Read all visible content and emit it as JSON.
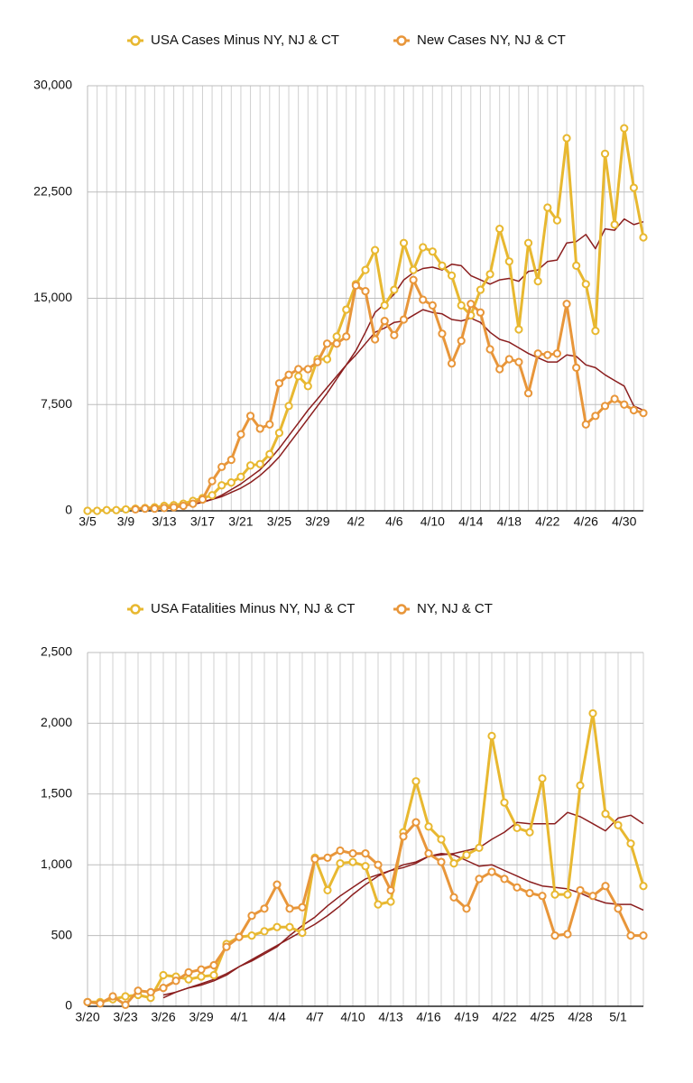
{
  "chart_data": [
    {
      "type": "line",
      "categories": [
        "3/5",
        null,
        null,
        null,
        "3/9",
        null,
        null,
        null,
        "3/13",
        null,
        null,
        null,
        "3/17",
        null,
        null,
        null,
        "3/21",
        null,
        null,
        null,
        "3/25",
        null,
        null,
        null,
        "3/29",
        null,
        null,
        null,
        "4/2",
        null,
        null,
        null,
        "4/6",
        null,
        null,
        null,
        "4/10",
        null,
        null,
        null,
        "4/14",
        null,
        null,
        null,
        "4/18",
        null,
        null,
        null,
        "4/22",
        null,
        null,
        null,
        "4/26",
        null,
        null,
        null,
        "4/30",
        null,
        null
      ],
      "ylim": [
        0,
        30000
      ],
      "yticks": [
        0,
        {
          "value": 7500,
          "label": "7,500"
        },
        {
          "value": 15000,
          "label": "15,000"
        },
        {
          "value": 22500,
          "label": "22,500"
        },
        {
          "value": 30000,
          "label": "30,000"
        }
      ],
      "grid": true,
      "legend": "top",
      "series": [
        {
          "color": "#8b1e1e",
          "values": [
            null,
            null,
            null,
            null,
            null,
            null,
            150,
            200,
            250,
            300,
            400,
            500,
            650,
            800,
            1000,
            1300,
            1600,
            2000,
            2500,
            3100,
            3800,
            4700,
            5600,
            6500,
            7400,
            8300,
            9300,
            10300,
            11300,
            12600,
            14000,
            14600,
            15300,
            16300,
            16800,
            17100,
            17200,
            17000,
            17400,
            17300,
            16600,
            16300,
            16000,
            16300,
            16400,
            16200,
            16900,
            17000,
            17600,
            17700,
            18900,
            19000,
            19500,
            18500,
            19900,
            19800,
            20600,
            20200,
            20400
          ]
        },
        {
          "color": "#8b1e1e",
          "values": [
            null,
            null,
            null,
            null,
            null,
            null,
            100,
            150,
            200,
            250,
            350,
            450,
            600,
            800,
            1100,
            1500,
            1900,
            2400,
            2900,
            3600,
            4400,
            5300,
            6200,
            7100,
            7900,
            8700,
            9500,
            10300,
            11000,
            11800,
            12600,
            12900,
            13300,
            13400,
            13800,
            14200,
            14000,
            13900,
            13500,
            13400,
            13600,
            13300,
            12600,
            12100,
            11900,
            11500,
            11100,
            10800,
            10500,
            10500,
            11000,
            10900,
            10300,
            10100,
            9600,
            9200,
            8800,
            7400,
            7100
          ]
        },
        {
          "name": "USA Cases Minus NY, NJ & CT",
          "color": "#e8b830",
          "marker": "circle",
          "values": [
            0,
            0,
            50,
            50,
            100,
            150,
            200,
            250,
            350,
            400,
            500,
            700,
            900,
            1100,
            1800,
            2000,
            2400,
            3200,
            3300,
            4000,
            5500,
            7400,
            9500,
            8800,
            10700,
            10700,
            12300,
            14200,
            16000,
            17000,
            18400,
            14500,
            15600,
            18900,
            17000,
            18600,
            18300,
            17300,
            16600,
            14500,
            13800,
            15600,
            16700,
            19900,
            17600,
            12800,
            18900,
            16200,
            21400,
            20500,
            26300,
            17300,
            16000,
            12700,
            25200,
            20200,
            27000,
            22800,
            19300
          ]
        },
        {
          "name": "New Cases NY, NJ & CT",
          "color": "#e8963a",
          "marker": "circle",
          "values": [
            null,
            null,
            null,
            null,
            null,
            100,
            150,
            150,
            200,
            250,
            350,
            500,
            800,
            2100,
            3100,
            3600,
            5400,
            6700,
            5800,
            6100,
            9000,
            9600,
            10000,
            10000,
            10500,
            11800,
            11800,
            12300,
            15900,
            15500,
            12100,
            13400,
            12400,
            13500,
            16300,
            14900,
            14500,
            12500,
            10400,
            12000,
            14600,
            14000,
            11400,
            10000,
            10700,
            10500,
            8300,
            11100,
            11000,
            11100,
            14600,
            10100,
            6100,
            6700,
            7400,
            7900,
            7500,
            7100,
            6900
          ]
        }
      ]
    },
    {
      "type": "line",
      "categories": [
        "3/20",
        null,
        null,
        "3/23",
        null,
        null,
        "3/26",
        null,
        null,
        "3/29",
        null,
        null,
        "4/1",
        null,
        null,
        "4/4",
        null,
        null,
        "4/7",
        null,
        null,
        "4/10",
        null,
        null,
        "4/13",
        null,
        null,
        "4/16",
        null,
        null,
        "4/19",
        null,
        null,
        "4/22",
        null,
        null,
        "4/25",
        null,
        null,
        "4/28",
        null,
        null,
        "5/1",
        null,
        null
      ],
      "ylim": [
        0,
        2500
      ],
      "yticks": [
        0,
        500,
        {
          "value": 1000,
          "label": "1,000"
        },
        {
          "value": 1500,
          "label": "1,500"
        },
        {
          "value": 2000,
          "label": "2,000"
        },
        {
          "value": 2500,
          "label": "2,500"
        }
      ],
      "grid": true,
      "legend": "top",
      "series": [
        {
          "color": "#8b1e1e",
          "values": [
            null,
            null,
            null,
            null,
            null,
            null,
            80,
            100,
            130,
            150,
            180,
            220,
            280,
            330,
            380,
            430,
            480,
            530,
            580,
            640,
            710,
            790,
            860,
            920,
            960,
            1000,
            1020,
            1060,
            1070,
            1080,
            1100,
            1120,
            1180,
            1230,
            1300,
            1290,
            1290,
            1290,
            1370,
            1340,
            1290,
            1240,
            1330,
            1350,
            1290
          ]
        },
        {
          "color": "#8b1e1e",
          "values": [
            null,
            null,
            null,
            null,
            null,
            null,
            60,
            100,
            130,
            160,
            190,
            230,
            280,
            320,
            370,
            420,
            500,
            570,
            630,
            710,
            780,
            840,
            900,
            930,
            960,
            980,
            1010,
            1060,
            1080,
            1070,
            1030,
            990,
            1000,
            960,
            920,
            880,
            850,
            840,
            830,
            800,
            760,
            730,
            720,
            720,
            680
          ]
        },
        {
          "name": "USA Fatalities Minus NY, NJ & CT",
          "color": "#e8b830",
          "marker": "circle",
          "values": [
            30,
            30,
            50,
            70,
            80,
            60,
            220,
            210,
            190,
            210,
            220,
            440,
            490,
            500,
            530,
            560,
            560,
            520,
            1050,
            820,
            1010,
            1020,
            990,
            720,
            740,
            1230,
            1590,
            1270,
            1180,
            1010,
            1070,
            1120,
            1910,
            1440,
            1260,
            1230,
            1610,
            790,
            790,
            1560,
            2070,
            1360,
            1280,
            1150,
            850
          ]
        },
        {
          "name": "NY, NJ & CT",
          "color": "#e8963a",
          "marker": "circle",
          "values": [
            30,
            20,
            70,
            10,
            110,
            100,
            130,
            180,
            240,
            260,
            290,
            420,
            490,
            640,
            690,
            860,
            690,
            700,
            1040,
            1050,
            1100,
            1080,
            1080,
            1000,
            820,
            1200,
            1300,
            1080,
            1020,
            770,
            690,
            900,
            950,
            900,
            840,
            800,
            780,
            500,
            510,
            820,
            780,
            850,
            690,
            500,
            500
          ]
        }
      ]
    }
  ]
}
